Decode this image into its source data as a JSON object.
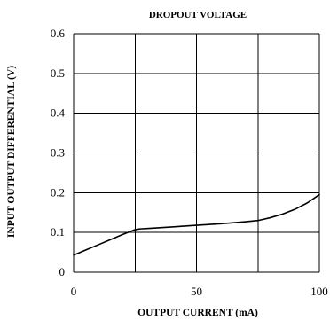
{
  "chart_data": {
    "type": "line",
    "title": "DROPOUT VOLTAGE",
    "xlabel": "OUTPUT CURRENT (mA)",
    "ylabel": "INPUT OUTPUT DIFFERENTIAL (V)",
    "xlim": [
      0,
      100
    ],
    "ylim": [
      0,
      0.6
    ],
    "x_ticks": [
      0,
      50,
      100
    ],
    "x_tick_labels": [
      "0",
      "50",
      "100"
    ],
    "y_ticks": [
      0,
      0.1,
      0.2,
      0.3,
      0.4,
      0.5,
      0.6
    ],
    "y_tick_labels": [
      "0",
      "0.1",
      "0.2",
      "0.3",
      "0.4",
      "0.5",
      "0.6"
    ],
    "grid_x": [
      0,
      25,
      50,
      75,
      100
    ],
    "grid_y": [
      0,
      0.1,
      0.2,
      0.3,
      0.4,
      0.5,
      0.6
    ],
    "grid": true,
    "series": [
      {
        "color": "#000000",
        "x": [
          0,
          5,
          10,
          15,
          20,
          25,
          27,
          30,
          40,
          50,
          60,
          70,
          75,
          80,
          85,
          90,
          95,
          100
        ],
        "y": [
          0.043,
          0.056,
          0.069,
          0.082,
          0.095,
          0.107,
          0.109,
          0.11,
          0.114,
          0.118,
          0.122,
          0.127,
          0.13,
          0.137,
          0.146,
          0.158,
          0.174,
          0.195
        ]
      }
    ]
  }
}
